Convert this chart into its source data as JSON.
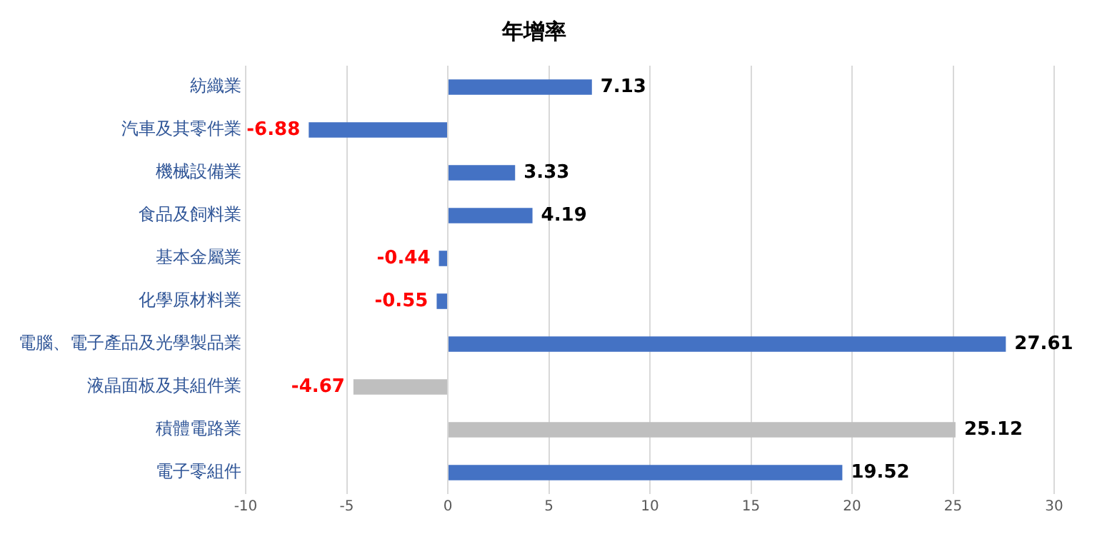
{
  "chart_data": {
    "type": "bar",
    "title": "年增率",
    "orientation": "horizontal",
    "categories": [
      "紡織業",
      "汽車及其零件業",
      "機械設備業",
      "食品及飼料業",
      "基本金屬業",
      "化學原材料業",
      "電腦、電子產品及光學製品業",
      "液晶面板及其組件業",
      "積體電路業",
      "電子零組件"
    ],
    "values": [
      7.13,
      -6.88,
      3.33,
      4.19,
      -0.44,
      -0.55,
      27.61,
      -4.67,
      25.12,
      19.52
    ],
    "colors": [
      "#4472c4",
      "#4472c4",
      "#4472c4",
      "#4472c4",
      "#4472c4",
      "#4472c4",
      "#4472c4",
      "#bfbfbf",
      "#bfbfbf",
      "#4472c4"
    ],
    "xlim": [
      -10,
      30
    ],
    "xticks": [
      -10,
      -5,
      0,
      5,
      10,
      15,
      20,
      25,
      30
    ],
    "grid": "x",
    "legend": false,
    "data_labels": true
  }
}
